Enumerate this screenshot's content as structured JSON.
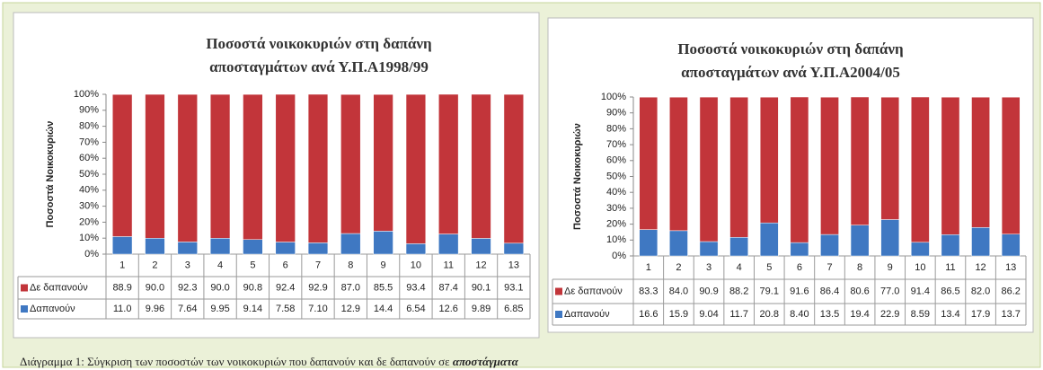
{
  "chart_data": [
    {
      "type": "stacked_bar",
      "title": "Ποσοστά νοικοκυριών στη δαπάνη",
      "subtitle": "αποσταγμάτων  ανά Υ.Π.Α1998/99",
      "y_label": "Ποσοστά Νοικοκυριών",
      "categories": [
        "1",
        "2",
        "3",
        "4",
        "5",
        "6",
        "7",
        "8",
        "9",
        "10",
        "11",
        "12",
        "13"
      ],
      "series": [
        {
          "name": "Δαπανούν",
          "color": "#3f78c2",
          "values": [
            11.0,
            9.96,
            7.64,
            9.95,
            9.14,
            7.58,
            7.1,
            12.9,
            14.4,
            6.54,
            12.6,
            9.89,
            6.85
          ],
          "value_labels": [
            "11.0",
            "9.96",
            "7.64",
            "9.95",
            "9.14",
            "7.58",
            "7.10",
            "12.9",
            "14.4",
            "6.54",
            "12.6",
            "9.89",
            "6.85"
          ]
        },
        {
          "name": "Δε δαπανούν",
          "color": "#c2353a",
          "values": [
            88.9,
            90.0,
            92.3,
            90.0,
            90.8,
            92.4,
            92.9,
            87.0,
            85.5,
            93.4,
            87.4,
            90.1,
            93.1
          ],
          "value_labels": [
            "88.9",
            "90.0",
            "92.3",
            "90.0",
            "90.8",
            "92.4",
            "92.9",
            "87.0",
            "85.5",
            "93.4",
            "87.4",
            "90.1",
            "93.1"
          ]
        }
      ],
      "ylim": [
        0,
        100
      ],
      "yticks": [
        {
          "value": 0,
          "label": "0%"
        },
        {
          "value": 10,
          "label": "10%"
        },
        {
          "value": 20,
          "label": "20%"
        },
        {
          "value": 30,
          "label": "30%"
        },
        {
          "value": 40,
          "label": "40%"
        },
        {
          "value": 50,
          "label": "50%"
        },
        {
          "value": 60,
          "label": "60%"
        },
        {
          "value": 70,
          "label": "70%"
        },
        {
          "value": 80,
          "label": "80%"
        },
        {
          "value": 90,
          "label": "90%"
        },
        {
          "value": 100,
          "label": "100%"
        }
      ]
    },
    {
      "type": "stacked_bar",
      "title": "Ποσοστά νοικοκυριών στη δαπάνη",
      "subtitle": "αποσταγμάτων  ανά Υ.Π.Α2004/05",
      "y_label": "Ποσοστά Νοικοκυριών",
      "categories": [
        "1",
        "2",
        "3",
        "4",
        "5",
        "6",
        "7",
        "8",
        "9",
        "10",
        "11",
        "12",
        "13"
      ],
      "series": [
        {
          "name": "Δαπανούν",
          "color": "#3f78c2",
          "values": [
            16.6,
            15.9,
            9.04,
            11.7,
            20.8,
            8.4,
            13.5,
            19.4,
            22.9,
            8.59,
            13.4,
            17.9,
            13.7
          ],
          "value_labels": [
            "16.6",
            "15.9",
            "9.04",
            "11.7",
            "20.8",
            "8.40",
            "13.5",
            "19.4",
            "22.9",
            "8.59",
            "13.4",
            "17.9",
            "13.7"
          ]
        },
        {
          "name": "Δε δαπανούν",
          "color": "#c2353a",
          "values": [
            83.3,
            84.0,
            90.9,
            88.2,
            79.1,
            91.6,
            86.4,
            80.6,
            77.0,
            91.4,
            86.5,
            82.0,
            86.2
          ],
          "value_labels": [
            "83.3",
            "84.0",
            "90.9",
            "88.2",
            "79.1",
            "91.6",
            "86.4",
            "80.6",
            "77.0",
            "91.4",
            "86.5",
            "82.0",
            "86.2"
          ]
        }
      ],
      "ylim": [
        0,
        100
      ],
      "yticks": [
        {
          "value": 0,
          "label": "0%"
        },
        {
          "value": 10,
          "label": "10%"
        },
        {
          "value": 20,
          "label": "20%"
        },
        {
          "value": 30,
          "label": "30%"
        },
        {
          "value": 40,
          "label": "40%"
        },
        {
          "value": 50,
          "label": "50%"
        },
        {
          "value": 60,
          "label": "60%"
        },
        {
          "value": 70,
          "label": "70%"
        },
        {
          "value": 80,
          "label": "80%"
        },
        {
          "value": 90,
          "label": "90%"
        },
        {
          "value": 100,
          "label": "100%"
        }
      ]
    }
  ],
  "caption": {
    "text": "Διάγραμμα 1: Σύγκριση των ποσοστών των νοικοκυριών που δαπανούν και δε δαπανούν σε ",
    "bold": "αποστάγματα"
  }
}
